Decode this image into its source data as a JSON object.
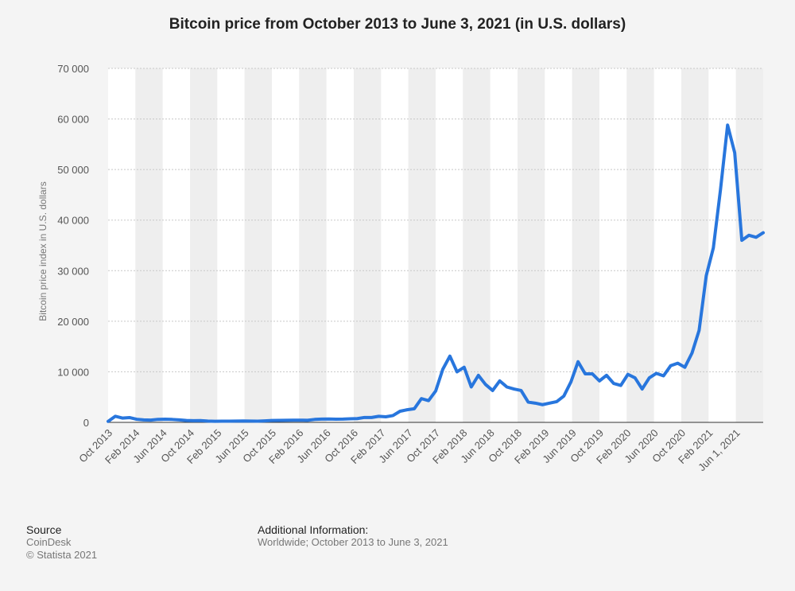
{
  "chart_data": {
    "type": "line",
    "title": "Bitcoin price from October 2013 to June 3, 2021 (in U.S. dollars)",
    "xlabel": "",
    "ylabel": "Bitcoin price index in U.S. dollars",
    "ylim": [
      0,
      70000
    ],
    "y_ticks": [
      0,
      10000,
      20000,
      30000,
      40000,
      50000,
      60000,
      70000
    ],
    "y_tick_labels": [
      "0",
      "10 000",
      "20 000",
      "30 000",
      "40 000",
      "50 000",
      "60 000",
      "70 000"
    ],
    "x_tick_labels": [
      "Oct 2013",
      "Feb 2014",
      "Jun 2014",
      "Oct 2014",
      "Feb 2015",
      "Jun 2015",
      "Oct 2015",
      "Feb 2016",
      "Jun 2016",
      "Oct 2016",
      "Feb 2017",
      "Jun 2017",
      "Oct 2017",
      "Feb 2018",
      "Jun 2018",
      "Oct 2018",
      "Feb 2019",
      "Jun 2019",
      "Oct 2019",
      "Feb 2020",
      "Jun 2020",
      "Oct 2020",
      "Feb 2021",
      "Jun 1, 2021"
    ],
    "line_color": "#2876dd",
    "series": [
      {
        "name": "Bitcoin price",
        "values": [
          200,
          1200,
          850,
          950,
          620,
          500,
          450,
          600,
          630,
          580,
          500,
          380,
          330,
          350,
          250,
          220,
          230,
          240,
          260,
          280,
          250,
          230,
          300,
          380,
          400,
          420,
          440,
          430,
          420,
          580,
          650,
          670,
          620,
          640,
          700,
          750,
          970,
          960,
          1200,
          1100,
          1350,
          2200,
          2500,
          2700,
          4700,
          4300,
          6200,
          10500,
          13100,
          10000,
          10900,
          7000,
          9300,
          7500,
          6300,
          8200,
          7000,
          6600,
          6300,
          4000,
          3800,
          3500,
          3800,
          4100,
          5200,
          8000,
          12000,
          9600,
          9600,
          8200,
          9300,
          7700,
          7300,
          9500,
          8800,
          6600,
          8800,
          9700,
          9200,
          11200,
          11700,
          10900,
          13700,
          18200,
          29000,
          34500,
          46000,
          58800,
          53300,
          36000,
          37000,
          36600,
          37500
        ]
      }
    ]
  },
  "footer": {
    "source_heading": "Source",
    "source_name": "CoinDesk",
    "copyright": "© Statista 2021",
    "info_heading": "Additional Information:",
    "info_text": "Worldwide; October 2013 to June 3, 2021"
  }
}
